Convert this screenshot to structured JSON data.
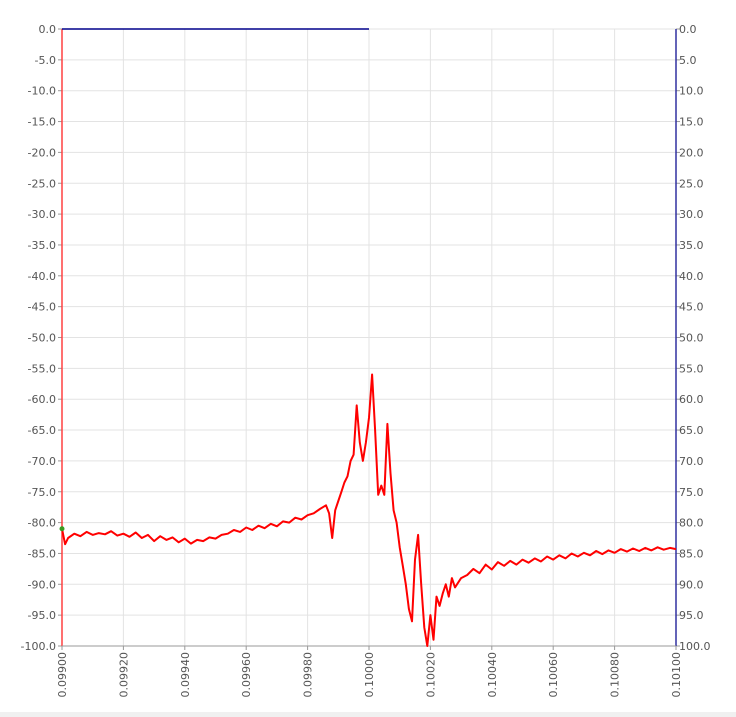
{
  "chart_data": {
    "type": "line",
    "title": "",
    "xlabel": "",
    "ylabel": "",
    "xlim": [
      0.099,
      0.101
    ],
    "ylim": [
      -100,
      0
    ],
    "grid": true,
    "x_ticks": [
      "0.09900",
      "0.09920",
      "0.09940",
      "0.09960",
      "0.09980",
      "0.10000",
      "0.10020",
      "0.10040",
      "0.10060",
      "0.10080",
      "0.10100"
    ],
    "y_ticks_left": [
      "0.0",
      "-5.0",
      "-10.0",
      "-15.0",
      "-20.0",
      "-25.0",
      "-30.0",
      "-35.0",
      "-40.0",
      "-45.0",
      "-50.0",
      "-55.0",
      "-60.0",
      "-65.0",
      "-70.0",
      "-75.0",
      "-80.0",
      "-85.0",
      "-90.0",
      "-95.0",
      "-100.0"
    ],
    "y_ticks_right": [
      "0.0",
      "5.0",
      "10.0",
      "15.0",
      "20.0",
      "25.0",
      "30.0",
      "35.0",
      "40.0",
      "45.0",
      "50.0",
      "55.0",
      "60.0",
      "65.0",
      "70.0",
      "75.0",
      "80.0",
      "85.0",
      "90.0",
      "95.0",
      "100.0"
    ],
    "colors": {
      "red_series": "#ff0000",
      "blue_series": "#00008b",
      "left_axis": "#ff4040",
      "right_axis": "#3030a0",
      "grid": "#e3e3e3"
    },
    "series": [
      {
        "color": "#ff0000",
        "x": [
          0.099,
          0.09901,
          0.09902,
          0.09904,
          0.09906,
          0.09908,
          0.0991,
          0.09912,
          0.09914,
          0.09916,
          0.09918,
          0.0992,
          0.09922,
          0.09924,
          0.09926,
          0.09928,
          0.0993,
          0.09932,
          0.09934,
          0.09936,
          0.09938,
          0.0994,
          0.09942,
          0.09944,
          0.09946,
          0.09948,
          0.0995,
          0.09952,
          0.09954,
          0.09956,
          0.09958,
          0.0996,
          0.09962,
          0.09964,
          0.09966,
          0.09968,
          0.0997,
          0.09972,
          0.09974,
          0.09976,
          0.09978,
          0.0998,
          0.09982,
          0.09984,
          0.09986,
          0.09987,
          0.09988,
          0.09989,
          0.0999,
          0.09991,
          0.09992,
          0.09993,
          0.09994,
          0.09995,
          0.09996,
          0.09997,
          0.09998,
          0.09999,
          0.1,
          0.10001,
          0.10002,
          0.10003,
          0.10004,
          0.10005,
          0.10006,
          0.10007,
          0.10008,
          0.10009,
          0.1001,
          0.10011,
          0.10012,
          0.10013,
          0.10014,
          0.10015,
          0.10016,
          0.10017,
          0.10018,
          0.10019,
          0.1002,
          0.10021,
          0.10022,
          0.10023,
          0.10024,
          0.10025,
          0.10026,
          0.10027,
          0.10028,
          0.1003,
          0.10032,
          0.10034,
          0.10036,
          0.10038,
          0.1004,
          0.10042,
          0.10044,
          0.10046,
          0.10048,
          0.1005,
          0.10052,
          0.10054,
          0.10056,
          0.10058,
          0.1006,
          0.10062,
          0.10064,
          0.10066,
          0.10068,
          0.1007,
          0.10072,
          0.10074,
          0.10076,
          0.10078,
          0.1008,
          0.10082,
          0.10084,
          0.10086,
          0.10088,
          0.1009,
          0.10092,
          0.10094,
          0.10096,
          0.10098,
          0.101
        ],
        "y": [
          -81.0,
          -83.5,
          -82.5,
          -81.8,
          -82.2,
          -81.5,
          -82.0,
          -81.7,
          -81.9,
          -81.4,
          -82.1,
          -81.8,
          -82.3,
          -81.6,
          -82.5,
          -82.0,
          -83.0,
          -82.2,
          -82.8,
          -82.4,
          -83.2,
          -82.6,
          -83.4,
          -82.8,
          -83.0,
          -82.4,
          -82.6,
          -82.0,
          -81.8,
          -81.2,
          -81.5,
          -80.8,
          -81.2,
          -80.5,
          -80.9,
          -80.2,
          -80.6,
          -79.8,
          -80.0,
          -79.2,
          -79.5,
          -78.8,
          -78.5,
          -77.8,
          -77.2,
          -78.5,
          -82.5,
          -78.0,
          -76.5,
          -75.0,
          -73.5,
          -72.5,
          -70.0,
          -69.0,
          -61.0,
          -67.0,
          -70.0,
          -67.0,
          -63.0,
          -56.0,
          -65.0,
          -75.5,
          -74.0,
          -75.5,
          -64.0,
          -72.0,
          -78.0,
          -80.0,
          -84.0,
          -87.0,
          -90.0,
          -94.0,
          -96.0,
          -86.0,
          -82.0,
          -90.0,
          -97.0,
          -100.0,
          -95.0,
          -99.0,
          -92.0,
          -93.5,
          -91.5,
          -90.0,
          -92.0,
          -89.0,
          -90.5,
          -89.0,
          -88.5,
          -87.5,
          -88.2,
          -86.8,
          -87.6,
          -86.4,
          -87.0,
          -86.2,
          -86.8,
          -86.0,
          -86.5,
          -85.8,
          -86.3,
          -85.5,
          -86.0,
          -85.3,
          -85.8,
          -85.0,
          -85.5,
          -84.9,
          -85.3,
          -84.6,
          -85.1,
          -84.5,
          -84.9,
          -84.3,
          -84.7,
          -84.2,
          -84.6,
          -84.1,
          -84.5,
          -84.0,
          -84.4,
          -84.1,
          -84.3
        ]
      },
      {
        "color": "#00008b",
        "x": [
          0.099,
          0.1
        ],
        "y": [
          0.0,
          0.0
        ]
      }
    ]
  }
}
